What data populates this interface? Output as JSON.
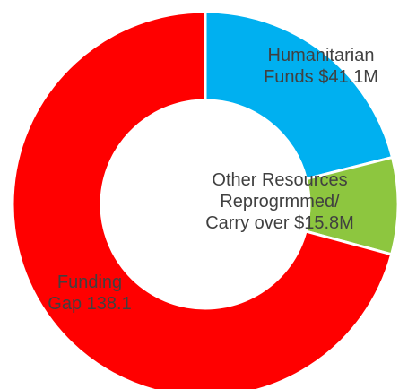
{
  "chart_data": {
    "type": "pie",
    "donut": true,
    "title": "",
    "legend": "none",
    "slices": [
      {
        "name": "Humanitarian Funds",
        "value": 41.1,
        "color": "#00b0f0",
        "label_lines": [
          "Humanitarian",
          "Funds $41.1M"
        ]
      },
      {
        "name": "Other Resources Reprogrmmed/ Carry over",
        "value": 15.8,
        "color": "#8dc63f",
        "label_lines": [
          "Other Resources",
          "Reprogrmmed/",
          "Carry over $15.8M"
        ]
      },
      {
        "name": "Funding Gap",
        "value": 138.1,
        "color": "#ff0000",
        "label_lines": [
          "Funding",
          "Gap 138.1"
        ]
      }
    ]
  }
}
